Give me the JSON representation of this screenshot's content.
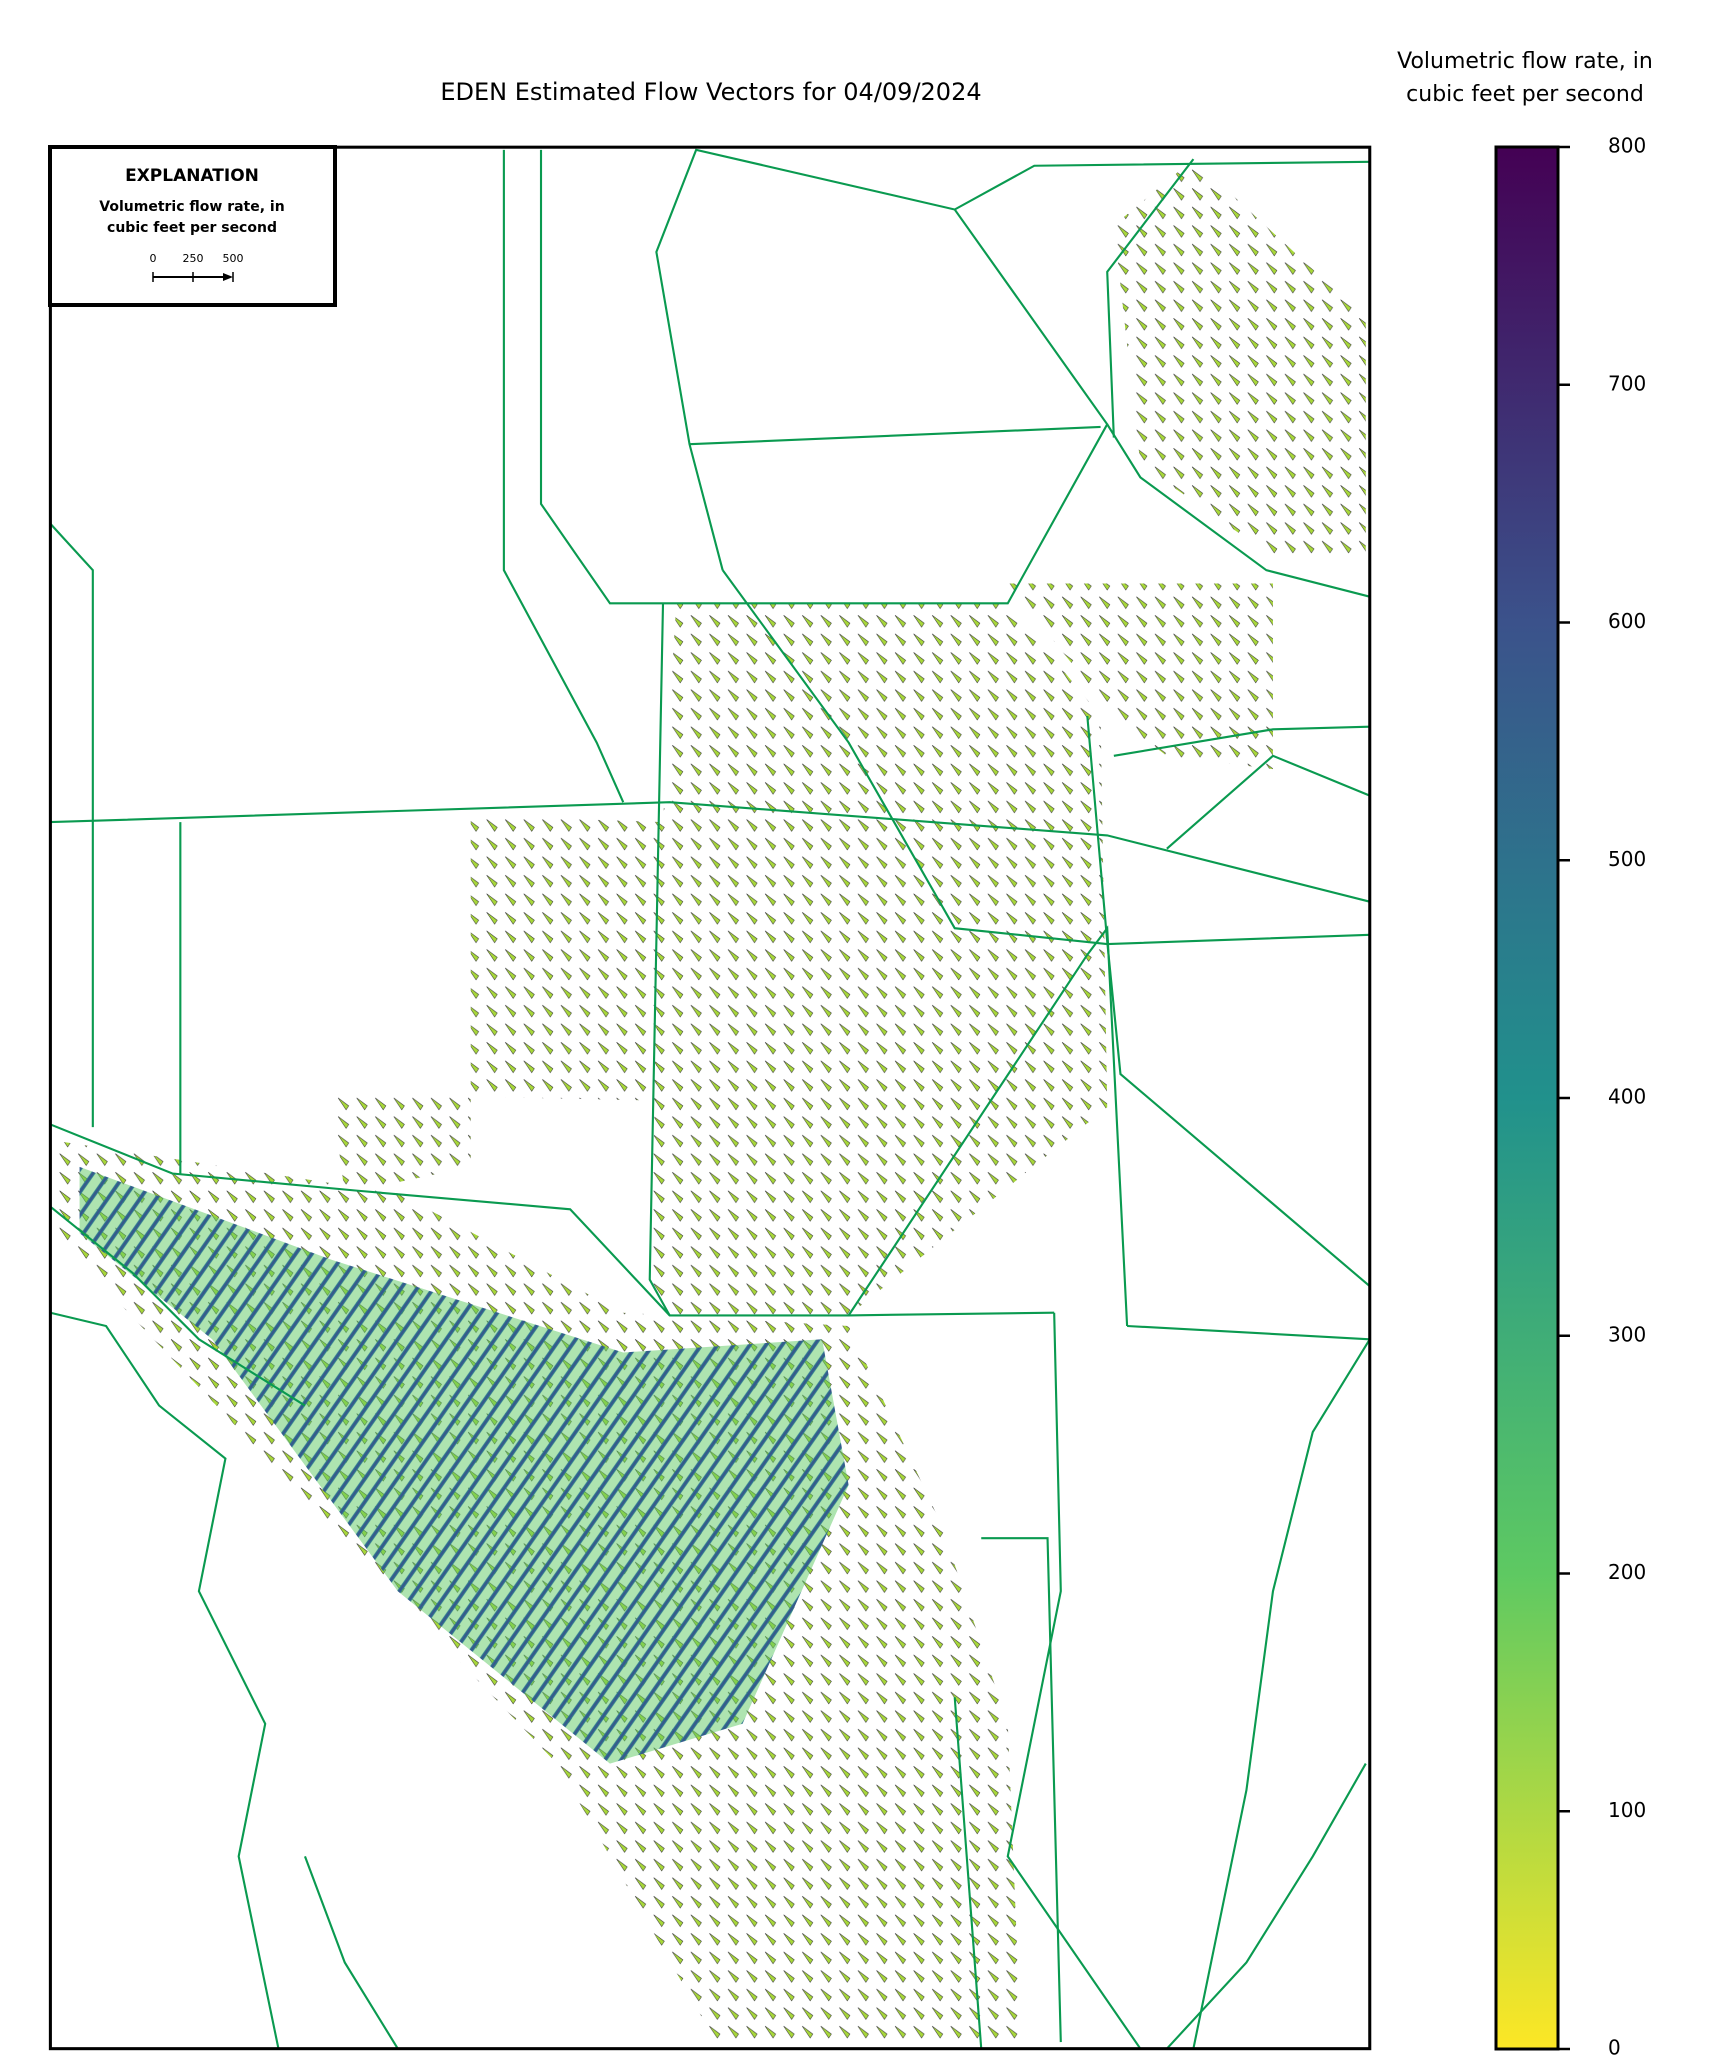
{
  "chart_data": {
    "type": "quiver",
    "title": "EDEN Estimated Flow Vectors for 04/09/2024",
    "colorbar": {
      "label_lines": [
        "Volumetric flow rate, in",
        "cubic feet per second"
      ],
      "lim": [
        0,
        800
      ],
      "ticks": [
        0,
        100,
        200,
        300,
        400,
        500,
        600,
        700,
        800
      ],
      "colors": [
        "#fde725",
        "#5ec962",
        "#21918c",
        "#3b528b",
        "#440154"
      ]
    },
    "explanation": {
      "title": "EXPLANATION",
      "label_lines": [
        "Volumetric flow rate, in",
        "cubic feet per second"
      ],
      "scale_ticks": [
        0,
        250,
        500
      ]
    }
  }
}
